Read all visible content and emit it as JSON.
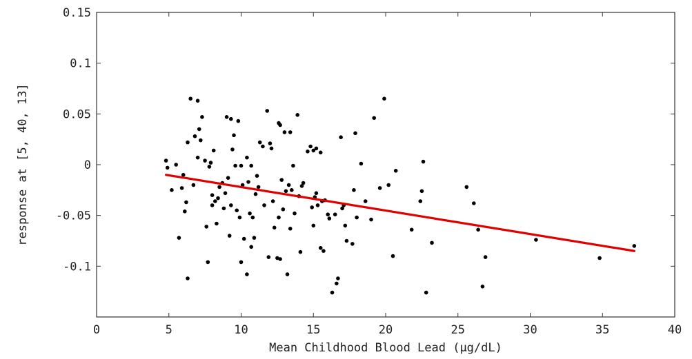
{
  "chart_data": {
    "type": "scatter",
    "title": "",
    "xlabel": "Mean Childhood Blood Lead (μg/dL)",
    "ylabel": "response at [5, 40, 13]",
    "xlim": [
      0,
      40
    ],
    "ylim": [
      -0.15,
      0.15
    ],
    "xticks": [
      0,
      5,
      10,
      15,
      20,
      25,
      30,
      35,
      40
    ],
    "yticks": [
      -0.1,
      -0.05,
      0,
      0.05,
      0.1,
      0.15
    ],
    "xtick_labels": [
      "0",
      "5",
      "10",
      "15",
      "20",
      "25",
      "30",
      "35",
      "40"
    ],
    "ytick_labels": [
      "-0.1",
      "-0.05",
      "0",
      "0.05",
      "0.1",
      "0.15"
    ],
    "grid": false,
    "point_color": "#000000",
    "line_color": "#e00000",
    "fit_line": {
      "x": [
        4.8,
        37.2
      ],
      "y": [
        -0.01,
        -0.085
      ]
    },
    "points": [
      [
        4.8,
        0.004
      ],
      [
        4.9,
        -0.003
      ],
      [
        5.2,
        -0.025
      ],
      [
        5.5,
        0.0
      ],
      [
        5.7,
        -0.072
      ],
      [
        5.9,
        -0.023
      ],
      [
        6.0,
        -0.01
      ],
      [
        6.1,
        -0.046
      ],
      [
        6.2,
        -0.037
      ],
      [
        6.3,
        -0.112
      ],
      [
        6.3,
        0.022
      ],
      [
        6.5,
        0.065
      ],
      [
        6.7,
        -0.02
      ],
      [
        6.8,
        0.028
      ],
      [
        7.0,
        0.063
      ],
      [
        7.0,
        0.007
      ],
      [
        7.1,
        0.035
      ],
      [
        7.2,
        0.024
      ],
      [
        7.3,
        0.047
      ],
      [
        7.5,
        0.004
      ],
      [
        7.6,
        -0.061
      ],
      [
        7.7,
        -0.096
      ],
      [
        7.8,
        -0.002
      ],
      [
        7.9,
        0.002
      ],
      [
        8.0,
        -0.03
      ],
      [
        8.0,
        -0.04
      ],
      [
        8.1,
        0.014
      ],
      [
        8.2,
        -0.036
      ],
      [
        8.3,
        -0.058
      ],
      [
        8.4,
        -0.033
      ],
      [
        8.5,
        -0.022
      ],
      [
        8.7,
        -0.018
      ],
      [
        8.8,
        -0.043
      ],
      [
        8.9,
        -0.028
      ],
      [
        9.0,
        0.047
      ],
      [
        9.1,
        -0.013
      ],
      [
        9.2,
        -0.07
      ],
      [
        9.3,
        0.045
      ],
      [
        9.3,
        -0.04
      ],
      [
        9.4,
        0.015
      ],
      [
        9.5,
        0.029
      ],
      [
        9.6,
        -0.001
      ],
      [
        9.7,
        -0.045
      ],
      [
        9.8,
        0.043
      ],
      [
        9.9,
        -0.052
      ],
      [
        10.0,
        -0.096
      ],
      [
        10.0,
        -0.001
      ],
      [
        10.1,
        -0.02
      ],
      [
        10.2,
        -0.073
      ],
      [
        10.4,
        -0.108
      ],
      [
        10.4,
        0.007
      ],
      [
        10.5,
        -0.017
      ],
      [
        10.6,
        -0.048
      ],
      [
        10.7,
        -0.081
      ],
      [
        10.7,
        -0.001
      ],
      [
        10.8,
        -0.052
      ],
      [
        10.9,
        -0.072
      ],
      [
        11.0,
        -0.029
      ],
      [
        11.1,
        -0.011
      ],
      [
        11.2,
        -0.022
      ],
      [
        11.3,
        0.022
      ],
      [
        11.5,
        0.018
      ],
      [
        11.6,
        -0.04
      ],
      [
        11.8,
        0.053
      ],
      [
        11.9,
        -0.091
      ],
      [
        12.0,
        0.021
      ],
      [
        12.1,
        0.016
      ],
      [
        12.2,
        -0.036
      ],
      [
        12.3,
        -0.062
      ],
      [
        12.5,
        -0.092
      ],
      [
        12.6,
        0.041
      ],
      [
        12.6,
        -0.052
      ],
      [
        12.7,
        0.039
      ],
      [
        12.7,
        -0.093
      ],
      [
        12.8,
        -0.015
      ],
      [
        12.9,
        -0.044
      ],
      [
        13.0,
        0.032
      ],
      [
        13.1,
        -0.026
      ],
      [
        13.2,
        -0.108
      ],
      [
        13.3,
        -0.02
      ],
      [
        13.4,
        0.032
      ],
      [
        13.4,
        -0.063
      ],
      [
        13.5,
        -0.025
      ],
      [
        13.6,
        -0.001
      ],
      [
        13.7,
        -0.048
      ],
      [
        13.9,
        0.049
      ],
      [
        14.0,
        -0.031
      ],
      [
        14.1,
        -0.086
      ],
      [
        14.2,
        -0.021
      ],
      [
        14.3,
        -0.018
      ],
      [
        14.6,
        0.013
      ],
      [
        14.8,
        0.018
      ],
      [
        14.9,
        -0.042
      ],
      [
        15.0,
        -0.06
      ],
      [
        15.0,
        0.014
      ],
      [
        15.1,
        -0.032
      ],
      [
        15.2,
        0.016
      ],
      [
        15.2,
        -0.028
      ],
      [
        15.3,
        -0.04
      ],
      [
        15.5,
        0.012
      ],
      [
        15.5,
        -0.082
      ],
      [
        15.6,
        -0.036
      ],
      [
        15.7,
        -0.085
      ],
      [
        15.8,
        -0.035
      ],
      [
        16.0,
        -0.049
      ],
      [
        16.1,
        -0.053
      ],
      [
        16.3,
        -0.126
      ],
      [
        16.5,
        -0.049
      ],
      [
        16.6,
        -0.117
      ],
      [
        16.7,
        -0.112
      ],
      [
        16.9,
        0.027
      ],
      [
        17.0,
        -0.043
      ],
      [
        17.1,
        -0.04
      ],
      [
        17.2,
        -0.06
      ],
      [
        17.3,
        -0.075
      ],
      [
        17.7,
        -0.078
      ],
      [
        17.8,
        -0.025
      ],
      [
        17.9,
        0.031
      ],
      [
        18.0,
        -0.052
      ],
      [
        18.3,
        0.001
      ],
      [
        18.6,
        -0.036
      ],
      [
        19.0,
        -0.054
      ],
      [
        19.2,
        0.046
      ],
      [
        19.6,
        -0.023
      ],
      [
        19.9,
        0.065
      ],
      [
        20.2,
        -0.02
      ],
      [
        20.5,
        -0.09
      ],
      [
        20.7,
        -0.006
      ],
      [
        21.8,
        -0.064
      ],
      [
        22.4,
        -0.036
      ],
      [
        22.5,
        -0.026
      ],
      [
        22.6,
        0.003
      ],
      [
        22.8,
        -0.126
      ],
      [
        23.2,
        -0.077
      ],
      [
        25.6,
        -0.022
      ],
      [
        26.1,
        -0.038
      ],
      [
        26.4,
        -0.064
      ],
      [
        26.9,
        -0.091
      ],
      [
        26.7,
        -0.12
      ],
      [
        30.4,
        -0.074
      ],
      [
        34.8,
        -0.092
      ],
      [
        37.2,
        -0.08
      ]
    ]
  }
}
